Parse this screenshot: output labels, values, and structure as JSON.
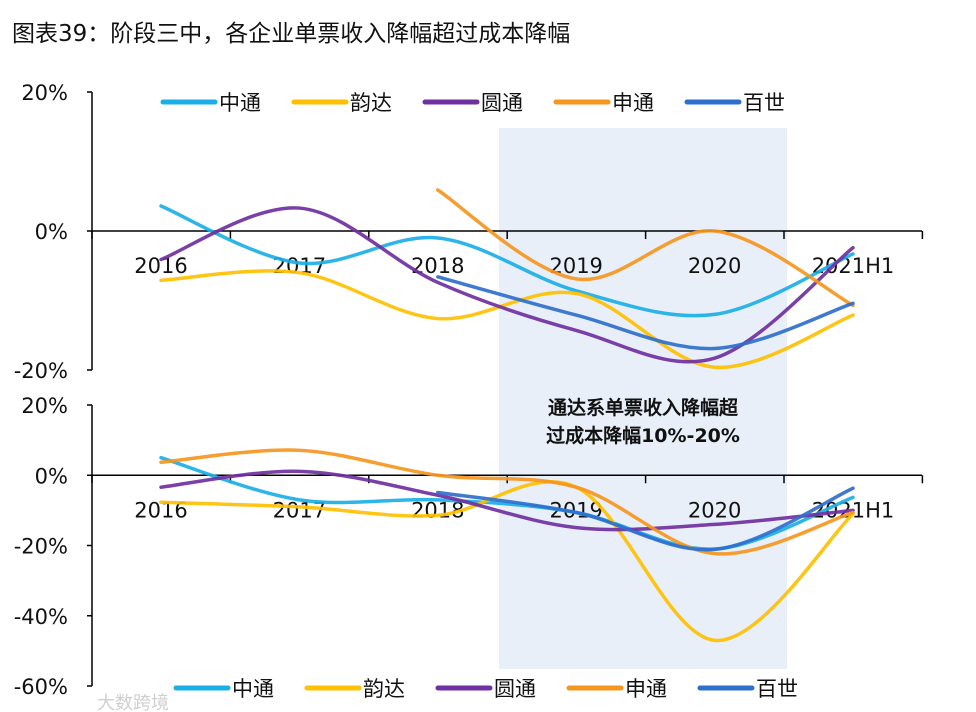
{
  "title": "图表39：阶段三中，各企业单票收入降幅超过成本降幅",
  "annotation": [
    "通达系单票收入降幅超",
    "过成本降幅10%-20%"
  ],
  "watermark": "大数跨境",
  "highlight_range": [
    "2019",
    "2020"
  ],
  "chart_data": [
    {
      "type": "line",
      "categories": [
        "2016",
        "2017",
        "2018",
        "2019",
        "2020",
        "2021H1"
      ],
      "ylim": [
        -20,
        20
      ],
      "yticks": [
        "20%",
        "0%",
        "-20%"
      ],
      "yticks_values": [
        20,
        0,
        -20
      ],
      "legend_position": "top",
      "series": [
        {
          "name": "中通",
          "color": "#1AAFE6",
          "values": [
            3.6,
            -4.6,
            -1.0,
            -8.6,
            -12.0,
            -3.3
          ]
        },
        {
          "name": "韵达",
          "color": "#FFC000",
          "values": [
            -7.1,
            -6.0,
            -12.6,
            -9.0,
            -19.6,
            -12.1
          ]
        },
        {
          "name": "圆通",
          "color": "#7030A0",
          "values": [
            -4.1,
            3.3,
            -7.4,
            -14.3,
            -18.3,
            -2.4
          ]
        },
        {
          "name": "申通",
          "color": "#F5961E",
          "values": [
            null,
            null,
            5.9,
            -6.9,
            0.0,
            -10.7
          ]
        },
        {
          "name": "百世",
          "color": "#2F6FCC",
          "values": [
            null,
            null,
            -6.6,
            -12.1,
            -16.9,
            -10.4
          ]
        }
      ]
    },
    {
      "type": "line",
      "categories": [
        "2016",
        "2017",
        "2018",
        "2019",
        "2020",
        "2021H1"
      ],
      "ylim": [
        -60,
        20
      ],
      "yticks": [
        "20%",
        "0%",
        "-20%",
        "-40%",
        "-60%"
      ],
      "yticks_values": [
        20,
        0,
        -20,
        -40,
        -60
      ],
      "legend_position": "bottom",
      "series": [
        {
          "name": "中通",
          "color": "#1AAFE6",
          "values": [
            5.0,
            -7.0,
            -7.0,
            -10.6,
            -21.0,
            -6.3
          ]
        },
        {
          "name": "韵达",
          "color": "#FFC000",
          "values": [
            -7.7,
            -9.0,
            -11.4,
            -3.4,
            -47.0,
            -11.0
          ]
        },
        {
          "name": "圆通",
          "color": "#7030A0",
          "values": [
            -3.4,
            1.1,
            -5.7,
            -14.9,
            -14.0,
            -10.0
          ]
        },
        {
          "name": "申通",
          "color": "#F5961E",
          "values": [
            3.7,
            7.1,
            0.0,
            -3.4,
            -22.3,
            -10.6
          ]
        },
        {
          "name": "百世",
          "color": "#2F6FCC",
          "values": [
            null,
            null,
            -4.9,
            -10.6,
            -21.1,
            -3.7
          ]
        }
      ]
    }
  ]
}
